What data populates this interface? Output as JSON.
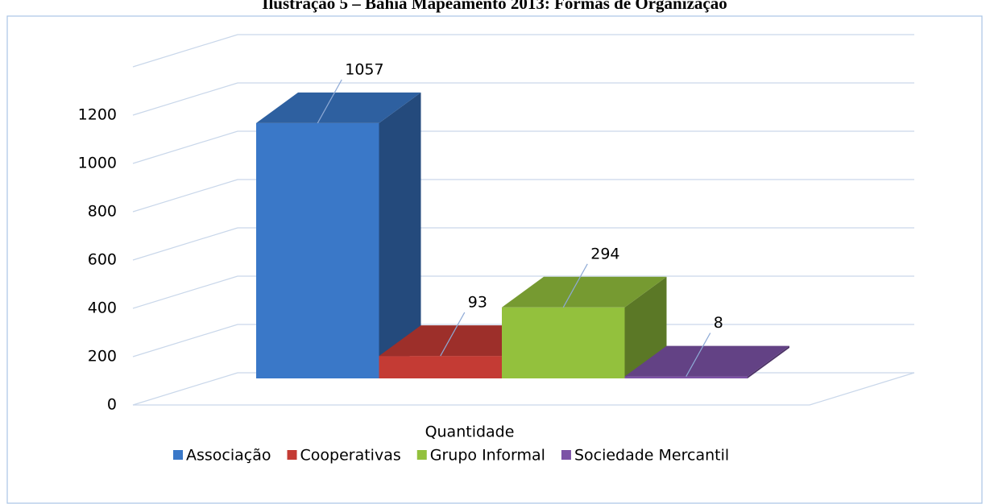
{
  "chart_data": {
    "type": "bar3d",
    "title": "Ilustração 5 – Bahia Mapeamento 2013: Formas de Organização",
    "categories": [
      "Quantidade"
    ],
    "series": [
      {
        "name": "Associação",
        "color": "#3a78c8",
        "values": [
          1057
        ]
      },
      {
        "name": "Cooperativas",
        "color": "#c43b34",
        "values": [
          93
        ]
      },
      {
        "name": "Grupo Informal",
        "color": "#93c13d",
        "values": [
          294
        ]
      },
      {
        "name": "Sociedade Mercantil",
        "color": "#7c52a6",
        "values": [
          8
        ]
      }
    ],
    "ylim": [
      0,
      1400
    ],
    "yticks": [
      0,
      200,
      400,
      600,
      800,
      1000,
      1200
    ],
    "grid": true,
    "legend": "bottom"
  }
}
